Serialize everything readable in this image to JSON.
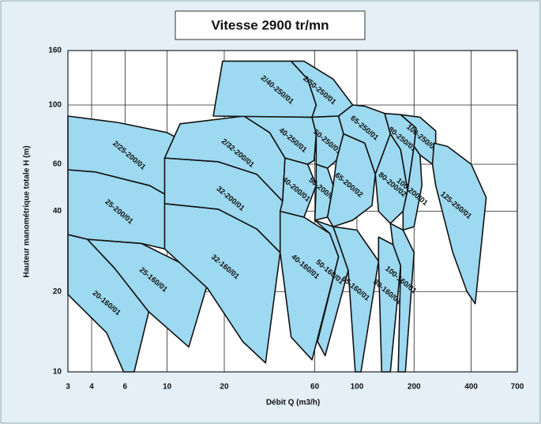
{
  "chart_data": {
    "type": "region",
    "title": "Vitesse 2900 tr/mn",
    "xlabel": "Débit Q (m3/h)",
    "ylabel": "Hauteur manométrique totale H (m)",
    "xscale": "log",
    "yscale": "log",
    "grid": true,
    "color": "#9dd9f0",
    "xlim": [
      3,
      700
    ],
    "ylim": [
      10,
      160
    ],
    "xticks": [
      3,
      4,
      6,
      10,
      20,
      60,
      100,
      200,
      400,
      700
    ],
    "yticks": [
      10,
      20,
      40,
      60,
      100,
      160
    ],
    "regions": [
      {
        "name": "20-160/01",
        "points": [
          [
            3,
            32.7
          ],
          [
            3.8,
            31.4
          ],
          [
            5.3,
            24.4
          ],
          [
            8,
            16.8
          ],
          [
            6.7,
            10
          ],
          [
            5.9,
            10
          ],
          [
            4.8,
            14
          ],
          [
            3,
            19.5
          ]
        ]
      },
      {
        "name": "25-160/01",
        "points": [
          [
            3.8,
            31.4
          ],
          [
            7.3,
            30.3
          ],
          [
            12.3,
            25.2
          ],
          [
            16.3,
            21.3
          ],
          [
            13,
            12.4
          ],
          [
            8,
            16.8
          ],
          [
            5.3,
            24.4
          ]
        ]
      },
      {
        "name": "25-200/01",
        "points": [
          [
            3,
            57.2
          ],
          [
            4.2,
            56.1
          ],
          [
            8.1,
            49.9
          ],
          [
            11.3,
            43.6
          ],
          [
            9.7,
            28.9
          ],
          [
            7.3,
            30.3
          ],
          [
            3.8,
            31.4
          ],
          [
            3,
            32.7
          ]
        ]
      },
      {
        "name": "2/25-200/01",
        "points": [
          [
            3,
            90.9
          ],
          [
            5.5,
            86
          ],
          [
            10,
            78.8
          ],
          [
            13,
            71.1
          ],
          [
            11.3,
            43.6
          ],
          [
            8.1,
            49.9
          ],
          [
            4.2,
            56.1
          ],
          [
            3,
            57.2
          ]
        ]
      },
      {
        "name": "32-160/01",
        "points": [
          [
            9.7,
            42.7
          ],
          [
            18.6,
            40.7
          ],
          [
            29.7,
            34.3
          ],
          [
            39.4,
            28
          ],
          [
            33,
            10.8
          ],
          [
            25,
            13
          ],
          [
            16.3,
            20.6
          ],
          [
            9.7,
            28.9
          ]
        ]
      },
      {
        "name": "32-200/01",
        "points": [
          [
            9.7,
            63.3
          ],
          [
            18.6,
            61.3
          ],
          [
            29.7,
            55
          ],
          [
            40.6,
            43.6
          ],
          [
            39.4,
            28
          ],
          [
            29.7,
            34.3
          ],
          [
            18.6,
            40.7
          ],
          [
            9.7,
            42.7
          ]
        ]
      },
      {
        "name": "2/32-200/01",
        "points": [
          [
            11.7,
            85
          ],
          [
            25.4,
            90.9
          ],
          [
            34.7,
            78.8
          ],
          [
            41.8,
            63.3
          ],
          [
            40.6,
            43.6
          ],
          [
            29.7,
            55
          ],
          [
            18.6,
            61.3
          ],
          [
            9.7,
            63.3
          ]
        ]
      },
      {
        "name": "40-160/01",
        "points": [
          [
            39.4,
            40
          ],
          [
            52.6,
            38
          ],
          [
            72,
            33
          ],
          [
            80,
            27
          ],
          [
            58,
            11.1
          ],
          [
            45,
            13.5
          ],
          [
            39.4,
            28
          ]
        ]
      },
      {
        "name": "40-200/01",
        "points": [
          [
            41.8,
            63.3
          ],
          [
            55,
            60
          ],
          [
            61,
            50
          ],
          [
            52.6,
            38
          ],
          [
            39.4,
            40
          ],
          [
            40.6,
            43.6
          ]
        ]
      },
      {
        "name": "40-250/01",
        "points": [
          [
            25.4,
            90.9
          ],
          [
            58,
            90
          ],
          [
            61,
            78
          ],
          [
            59.5,
            62
          ],
          [
            55,
            60
          ],
          [
            41.8,
            63.3
          ],
          [
            34.7,
            78.8
          ]
        ]
      },
      {
        "name": "2/40-250/01",
        "points": [
          [
            17.5,
            90.9
          ],
          [
            19.6,
            146
          ],
          [
            45,
            146
          ],
          [
            55,
            125
          ],
          [
            61,
            100
          ],
          [
            58,
            90
          ]
        ]
      },
      {
        "name": "2/50-250/01",
        "points": [
          [
            45,
            146
          ],
          [
            52.6,
            146
          ],
          [
            75,
            125
          ],
          [
            95,
            100
          ],
          [
            80,
            90.9
          ],
          [
            58,
            90
          ],
          [
            61,
            100
          ],
          [
            55,
            125
          ]
        ]
      },
      {
        "name": "50-160/01",
        "points": [
          [
            60,
            37
          ],
          [
            75,
            35
          ],
          [
            90,
            24
          ],
          [
            68,
            11.5
          ],
          [
            62,
            13
          ],
          [
            80,
            27
          ],
          [
            72,
            33
          ]
        ]
      },
      {
        "name": "50-200/01",
        "points": [
          [
            61,
            60
          ],
          [
            70,
            58
          ],
          [
            75,
            50
          ],
          [
            70,
            38
          ],
          [
            60,
            37
          ],
          [
            61,
            50
          ]
        ]
      },
      {
        "name": "50-250/01",
        "points": [
          [
            58,
            90
          ],
          [
            80,
            90.9
          ],
          [
            85,
            78
          ],
          [
            78,
            62
          ],
          [
            70,
            58
          ],
          [
            61,
            60
          ],
          [
            61,
            78
          ]
        ]
      },
      {
        "name": "65-160/01",
        "points": [
          [
            75,
            35
          ],
          [
            100,
            34
          ],
          [
            130,
            26
          ],
          [
            105,
            10
          ],
          [
            98,
            10
          ],
          [
            90,
            24
          ]
        ]
      },
      {
        "name": "65-200/02",
        "points": [
          [
            85,
            78
          ],
          [
            110,
            72
          ],
          [
            125,
            55
          ],
          [
            120,
            42
          ],
          [
            95,
            37
          ],
          [
            75,
            35
          ],
          [
            70,
            38
          ],
          [
            75,
            50
          ],
          [
            78,
            62
          ]
        ]
      },
      {
        "name": "65-250/01",
        "points": [
          [
            95,
            100
          ],
          [
            110,
            99
          ],
          [
            140,
            93
          ],
          [
            150,
            78
          ],
          [
            125,
            55
          ],
          [
            110,
            72
          ],
          [
            85,
            78
          ],
          [
            80,
            90.9
          ]
        ]
      },
      {
        "name": "80-160/01",
        "points": [
          [
            130,
            32
          ],
          [
            155,
            30
          ],
          [
            170,
            25
          ],
          [
            150,
            10
          ],
          [
            135,
            10
          ],
          [
            130,
            26
          ]
        ]
      },
      {
        "name": "100-160/01",
        "points": [
          [
            150,
            36
          ],
          [
            175,
            34
          ],
          [
            200,
            28
          ],
          [
            180,
            10
          ],
          [
            165,
            10
          ],
          [
            170,
            25
          ],
          [
            155,
            30
          ]
        ]
      },
      {
        "name": "80-200/02",
        "points": [
          [
            150,
            78
          ],
          [
            170,
            68
          ],
          [
            185,
            48
          ],
          [
            175,
            40
          ],
          [
            150,
            36
          ],
          [
            130,
            40
          ],
          [
            125,
            55
          ]
        ]
      },
      {
        "name": "80-250/01",
        "points": [
          [
            140,
            93
          ],
          [
            170,
            92
          ],
          [
            205,
            82
          ],
          [
            200,
            70
          ],
          [
            185,
            48
          ],
          [
            170,
            68
          ],
          [
            150,
            78
          ]
        ]
      },
      {
        "name": "100-200/01",
        "points": [
          [
            200,
            70
          ],
          [
            215,
            65
          ],
          [
            220,
            50
          ],
          [
            200,
            35
          ],
          [
            175,
            34
          ],
          [
            175,
            40
          ],
          [
            185,
            48
          ]
        ]
      },
      {
        "name": "100-250/01",
        "points": [
          [
            170,
            92
          ],
          [
            215,
            90
          ],
          [
            260,
            80
          ],
          [
            260,
            68
          ],
          [
            250,
            60
          ],
          [
            215,
            65
          ],
          [
            200,
            70
          ],
          [
            205,
            82
          ]
        ]
      },
      {
        "name": "125-250/01",
        "points": [
          [
            255,
            72
          ],
          [
            300,
            70
          ],
          [
            400,
            60
          ],
          [
            480,
            45
          ],
          [
            420,
            18
          ],
          [
            380,
            20
          ],
          [
            320,
            28
          ],
          [
            260,
            50
          ],
          [
            250,
            60
          ]
        ]
      }
    ]
  }
}
